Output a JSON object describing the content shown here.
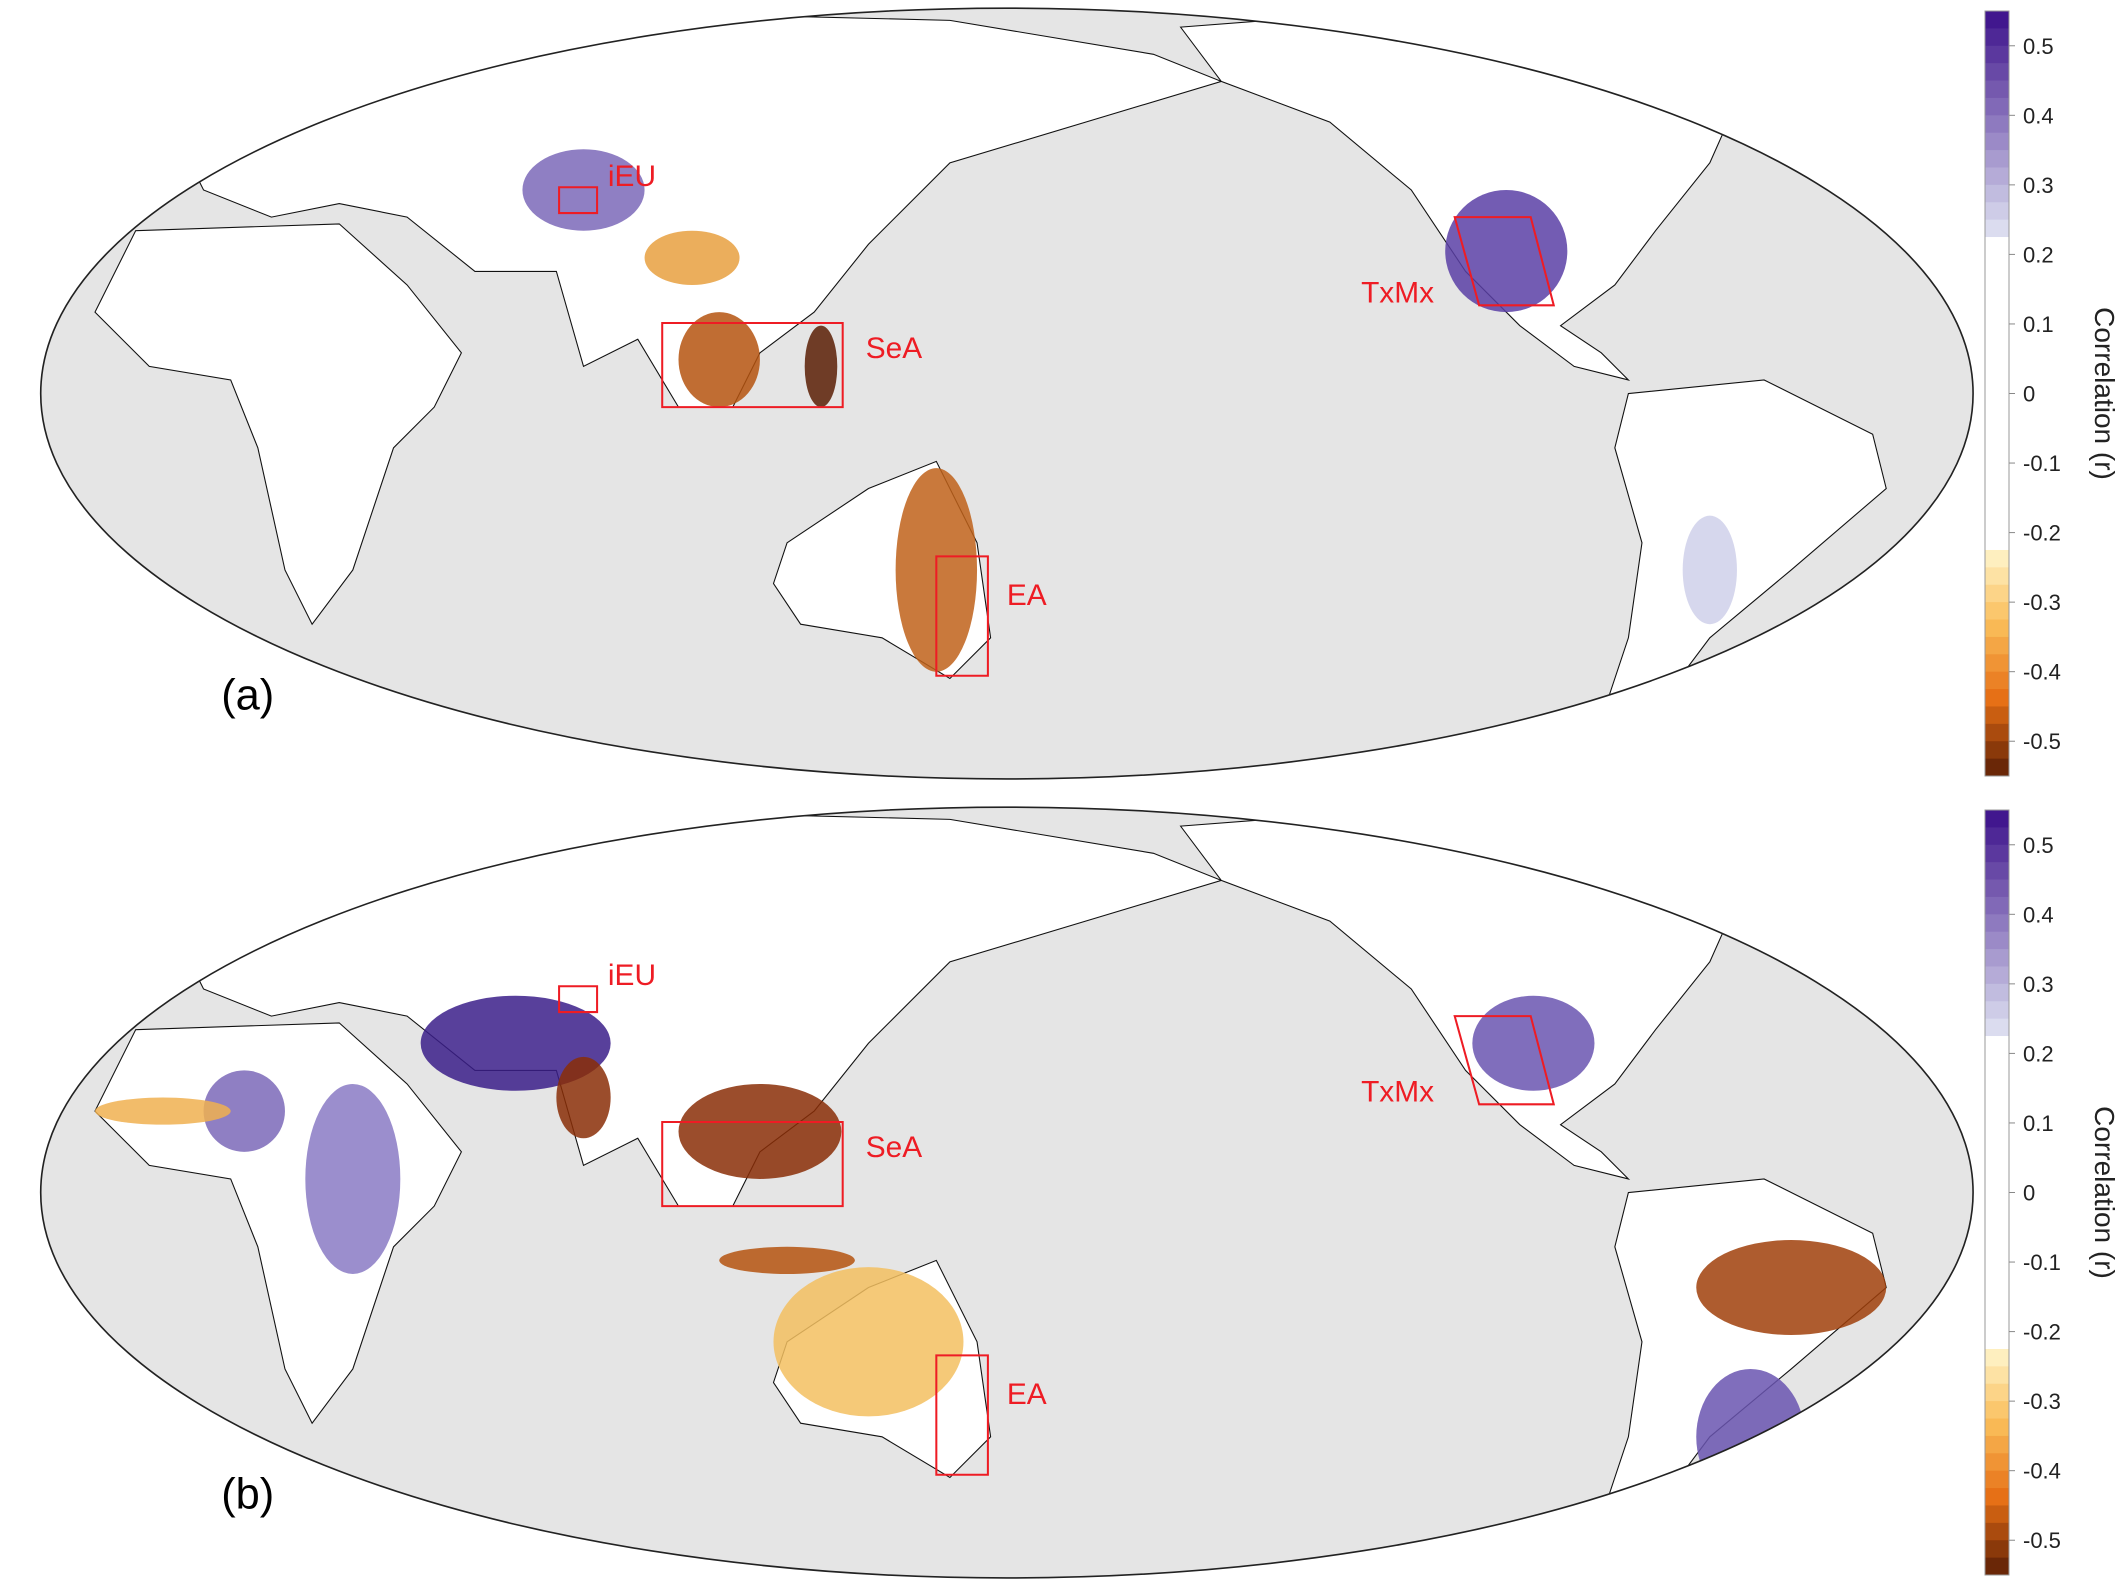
{
  "panels": [
    {
      "label": "(a)",
      "regions": {
        "iEU": "iEU",
        "SeA": "SeA",
        "EA": "EA",
        "TxMx": "TxMx"
      }
    },
    {
      "label": "(b)",
      "regions": {
        "iEU": "iEU",
        "SeA": "SeA",
        "EA": "EA",
        "TxMx": "TxMx"
      }
    }
  ],
  "colorbar": {
    "title": "Correlation (r)",
    "ticks": [
      "0.5",
      "0.4",
      "0.3",
      "0.2",
      "0.1",
      "0",
      "-0.1",
      "-0.2",
      "-0.3",
      "-0.4",
      "-0.5"
    ],
    "range": [
      -0.55,
      0.55
    ],
    "colors": {
      "positive_max": "#3b0f8a",
      "neutral": "#ffffff",
      "negative_max": "#5a1e05"
    }
  },
  "colors": {
    "ocean": "#e5e5e5",
    "land": "#ffffff",
    "region_box": "#ee1c24",
    "positive": "#5a3fa6",
    "negative": "#d2630f"
  }
}
